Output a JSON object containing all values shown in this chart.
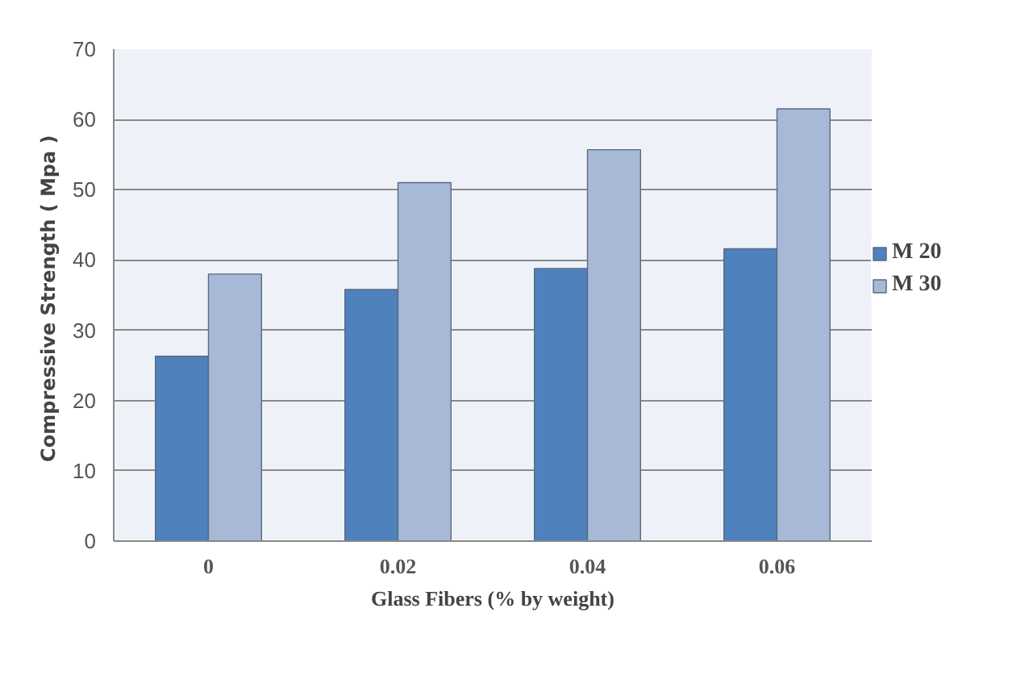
{
  "chart_data": {
    "type": "bar",
    "xlabel": "Glass Fibers (% by weight)",
    "ylabel": "Compressive  Strength ( Mpa )",
    "categories": [
      "0",
      "0.02",
      "0.04",
      "0.06"
    ],
    "series": [
      {
        "name": "M 20",
        "color": "#4f81bd",
        "values": [
          26.3,
          35.8,
          38.8,
          41.6
        ]
      },
      {
        "name": "M 30",
        "color": "#a7b9d7",
        "values": [
          38,
          51,
          55.7,
          61.5
        ]
      }
    ],
    "ylim": [
      0,
      70
    ],
    "yticks": [
      0,
      10,
      20,
      30,
      40,
      50,
      60,
      70
    ],
    "grid": "y",
    "legend": "right"
  }
}
